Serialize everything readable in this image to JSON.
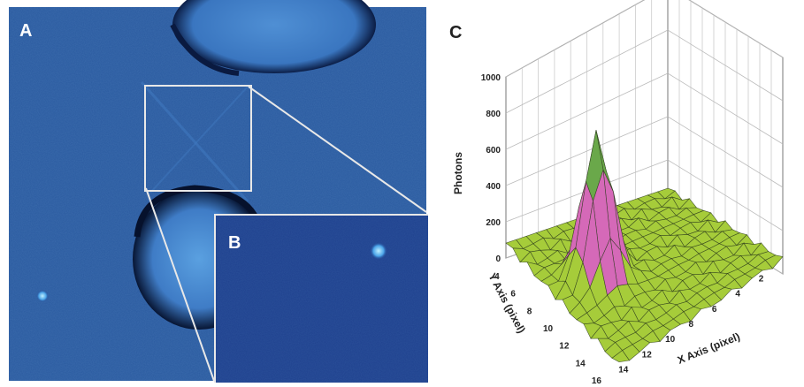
{
  "panels": {
    "a": {
      "label": "A"
    },
    "b": {
      "label": "B"
    },
    "c": {
      "label": "C"
    }
  },
  "chart_data": {
    "type": "surface",
    "zlabel": "Photons",
    "xlabel": "X Axis (pixel)",
    "ylabel": "Y Axis (pixel)",
    "z_ticks": [
      "0",
      "200",
      "400",
      "600",
      "800",
      "1000"
    ],
    "x_ticks": [
      "14",
      "12",
      "10",
      "8",
      "6",
      "4",
      "2"
    ],
    "y_ticks": [
      "4",
      "6",
      "8",
      "10",
      "12",
      "14",
      "16"
    ],
    "zlim": [
      0,
      1000
    ],
    "peak_photons": 950,
    "background_photons": 150,
    "grid": true
  },
  "colors": {
    "micrograph_bg": "#245095",
    "surface_base": "#a6cc3a",
    "surface_peak": "#d35fb0",
    "frame": "#e8e8e8"
  }
}
